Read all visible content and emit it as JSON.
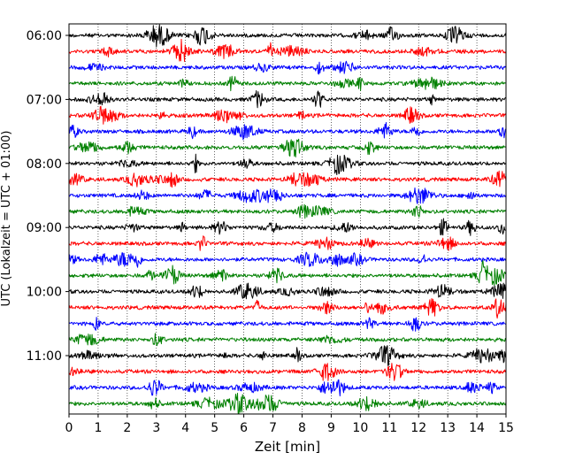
{
  "chart_data": {
    "type": "line",
    "title": "",
    "xlabel": "Zeit  [min]",
    "ylabel": "UTC (Lokalzeit = UTC + 01:00)",
    "xlim": [
      0,
      15
    ],
    "x_ticks": [
      "0",
      "1",
      "2",
      "3",
      "4",
      "5",
      "6",
      "7",
      "8",
      "9",
      "10",
      "11",
      "12",
      "13",
      "14",
      "15"
    ],
    "y_ticks": [
      "06:00",
      "07:00",
      "08:00",
      "09:00",
      "10:00",
      "11:00"
    ],
    "grid": "vertical dotted at each minute",
    "legend": "none",
    "trace_interval_min": 15,
    "traces": [
      {
        "start": "06:00",
        "color": "#000000"
      },
      {
        "start": "06:15",
        "color": "#ff0000"
      },
      {
        "start": "06:30",
        "color": "#0000ff"
      },
      {
        "start": "06:45",
        "color": "#008000"
      },
      {
        "start": "07:00",
        "color": "#000000"
      },
      {
        "start": "07:15",
        "color": "#ff0000"
      },
      {
        "start": "07:30",
        "color": "#0000ff"
      },
      {
        "start": "07:45",
        "color": "#008000"
      },
      {
        "start": "08:00",
        "color": "#000000"
      },
      {
        "start": "08:15",
        "color": "#ff0000"
      },
      {
        "start": "08:30",
        "color": "#0000ff"
      },
      {
        "start": "08:45",
        "color": "#008000"
      },
      {
        "start": "09:00",
        "color": "#000000"
      },
      {
        "start": "09:15",
        "color": "#ff0000"
      },
      {
        "start": "09:30",
        "color": "#0000ff"
      },
      {
        "start": "09:45",
        "color": "#008000"
      },
      {
        "start": "10:00",
        "color": "#000000"
      },
      {
        "start": "10:15",
        "color": "#ff0000"
      },
      {
        "start": "10:30",
        "color": "#0000ff"
      },
      {
        "start": "10:45",
        "color": "#008000"
      },
      {
        "start": "11:00",
        "color": "#000000"
      },
      {
        "start": "11:15",
        "color": "#ff0000"
      },
      {
        "start": "11:30",
        "color": "#0000ff"
      },
      {
        "start": "11:45",
        "color": "#008000"
      }
    ]
  }
}
